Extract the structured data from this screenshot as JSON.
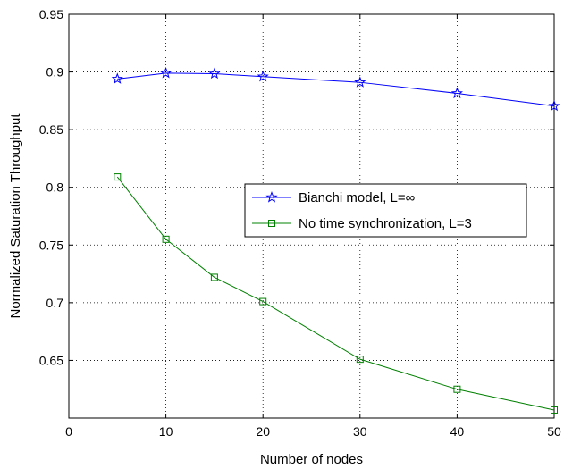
{
  "chart_data": {
    "type": "line",
    "title": "",
    "xlabel": "Number of nodes",
    "ylabel": "Normalized Saturation Throughput",
    "xlim": [
      0,
      50
    ],
    "ylim": [
      0.6,
      0.95
    ],
    "xticks": [
      0,
      10,
      20,
      30,
      40,
      50
    ],
    "yticks": [
      0.65,
      0.7,
      0.75,
      0.8,
      0.85,
      0.9,
      0.95
    ],
    "xtick_labels": [
      "0",
      "10",
      "20",
      "30",
      "40",
      "50"
    ],
    "ytick_labels": [
      "0.65",
      "0.7",
      "0.75",
      "0.8",
      "0.85",
      "0.9",
      "0.95"
    ],
    "grid": true,
    "legend_position": "center-right",
    "series": [
      {
        "name": "Bianchi model, L=∞",
        "color": "#0000ff",
        "marker": "star",
        "x": [
          5,
          10,
          15,
          20,
          30,
          40,
          50
        ],
        "y": [
          0.894,
          0.899,
          0.8985,
          0.896,
          0.891,
          0.8815,
          0.8705
        ]
      },
      {
        "name": "No time synchronization, L=3",
        "color": "#008000",
        "marker": "square",
        "x": [
          5,
          10,
          15,
          20,
          30,
          40,
          50
        ],
        "y": [
          0.809,
          0.755,
          0.722,
          0.701,
          0.651,
          0.625,
          0.607
        ]
      }
    ]
  }
}
